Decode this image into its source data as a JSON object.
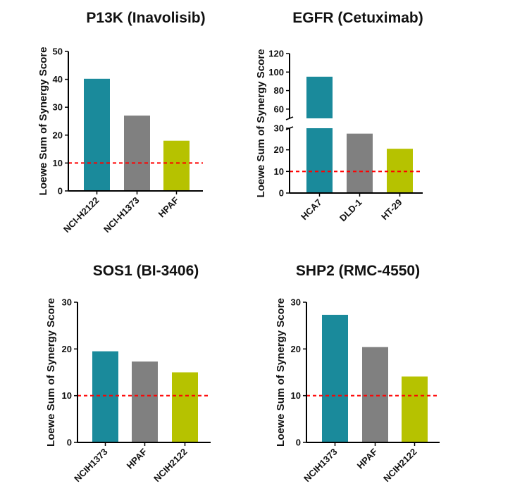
{
  "colors": {
    "bar1": "#1a8a9b",
    "bar2": "#808080",
    "bar3": "#b6c200",
    "threshold": "#ff0000",
    "axis": "#000000"
  },
  "chart_data": [
    {
      "type": "bar",
      "title": "P13K (Inavolisib)",
      "ylabel": "Loewe Sum of Synergy Score",
      "categories": [
        "NCI-H2122",
        "NCI-H1373",
        "HPAF"
      ],
      "values": [
        40.2,
        27,
        18
      ],
      "ylim": [
        0,
        50
      ],
      "yticks": [
        "0",
        "10",
        "20",
        "30",
        "40",
        "50"
      ],
      "threshold": 10,
      "broken_axis": false
    },
    {
      "type": "bar",
      "title": "EGFR (Cetuximab)",
      "ylabel": "Loewe Sum of Synergy Score",
      "categories": [
        "HCA7",
        "DLD-1",
        "HT-29"
      ],
      "values": [
        95,
        27.5,
        20.5
      ],
      "ylim": [
        0,
        120
      ],
      "broken_axis": true,
      "lower_range": [
        0,
        30
      ],
      "upper_range": [
        50,
        120
      ],
      "yticks_lower": [
        "0",
        "10",
        "20",
        "30"
      ],
      "yticks_upper": [
        "60",
        "80",
        "100",
        "120"
      ],
      "threshold": 10
    },
    {
      "type": "bar",
      "title": "SOS1 (BI-3406)",
      "ylabel": "Loewe Sum of Synergy Score",
      "categories": [
        "NCIH1373",
        "HPAF",
        "NCIH2122"
      ],
      "values": [
        19.5,
        17.3,
        15
      ],
      "ylim": [
        0,
        30
      ],
      "yticks": [
        "0",
        "10",
        "20",
        "30"
      ],
      "threshold": 10,
      "broken_axis": false
    },
    {
      "type": "bar",
      "title": "SHP2 (RMC-4550)",
      "ylabel": "Loewe Sum of Synergy Score",
      "categories": [
        "NCIH1373",
        "HPAF",
        "NCIH2122"
      ],
      "values": [
        27.3,
        20.4,
        14.1
      ],
      "ylim": [
        0,
        30
      ],
      "yticks": [
        "0",
        "10",
        "20",
        "30"
      ],
      "threshold": 10,
      "broken_axis": false
    }
  ]
}
